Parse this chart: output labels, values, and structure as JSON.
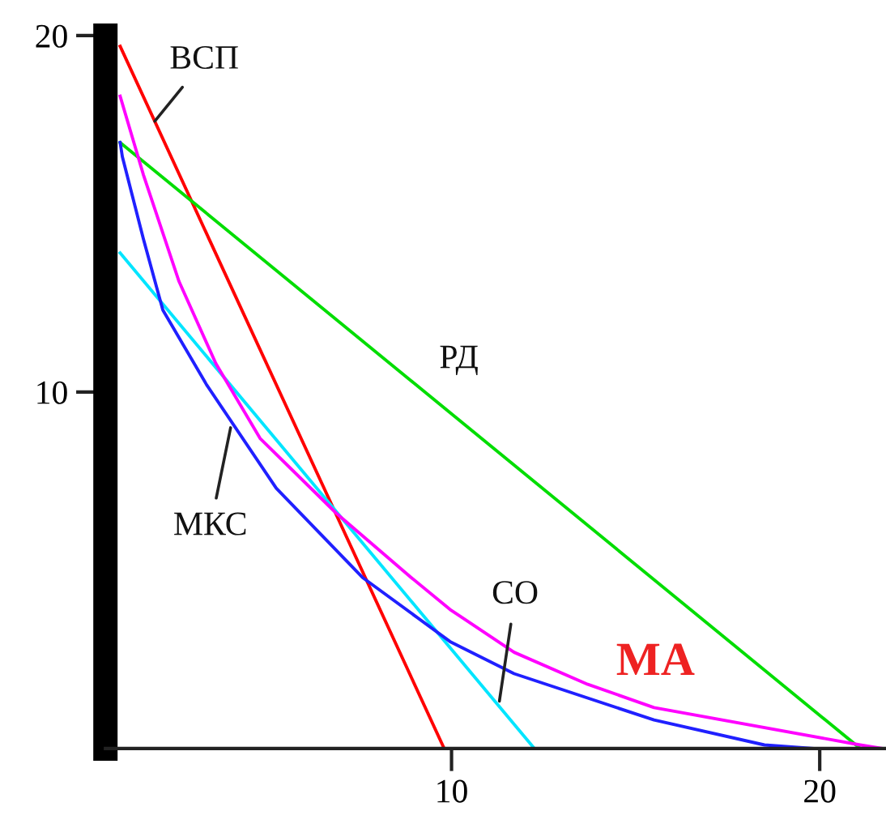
{
  "chart_data": {
    "type": "line",
    "series": [
      {
        "color": "#ff0000",
        "x": [
          1,
          9.8
        ],
        "values": [
          19.7,
          0
        ]
      },
      {
        "color": "#00dd00",
        "x": [
          1,
          21.1
        ],
        "values": [
          17.0,
          0
        ]
      },
      {
        "color": "#00e5ff",
        "x": [
          1,
          12.25
        ],
        "values": [
          13.9,
          0
        ]
      },
      {
        "color": "#2020ff",
        "x": [
          1,
          1.06,
          1.63,
          2.16,
          3.35,
          5.24,
          7.58,
          9.96,
          11.7,
          15.5,
          18.5,
          19.8
        ],
        "values": [
          17.0,
          16.6,
          14.3,
          12.3,
          10.2,
          7.3,
          4.8,
          3.0,
          2.1,
          0.8,
          0.1,
          0
        ]
      },
      {
        "color": "#ff00ff",
        "x": [
          1,
          1.63,
          2.6,
          3.6,
          4.8,
          6.87,
          8.9,
          9.96,
          11.7,
          13.7,
          15.5,
          21.1,
          21.7
        ],
        "values": [
          18.3,
          16.1,
          13.1,
          10.8,
          8.7,
          6.6,
          4.8,
          3.9,
          2.7,
          1.8,
          1.15,
          0.1,
          0
        ]
      }
    ],
    "annotations": [
      {
        "text": "ВСП",
        "x": 1.94,
        "y": 17.6
      },
      {
        "text": "РД",
        "x": 10.2,
        "y": 9.2
      },
      {
        "text": "МКС",
        "x": 4.0,
        "y": 9.0
      },
      {
        "text": "СО",
        "x": 11.3,
        "y": 1.33
      },
      {
        "text": "МА",
        "x": 14.5,
        "y": 1.5
      }
    ],
    "xlim": [
      0.6,
      21.8
    ],
    "ylim": [
      0,
      20
    ],
    "xticks": [
      10,
      20
    ],
    "yticks": [
      10,
      20
    ],
    "grid": false,
    "legend": false,
    "marker": "none",
    "line_style": "solid"
  }
}
